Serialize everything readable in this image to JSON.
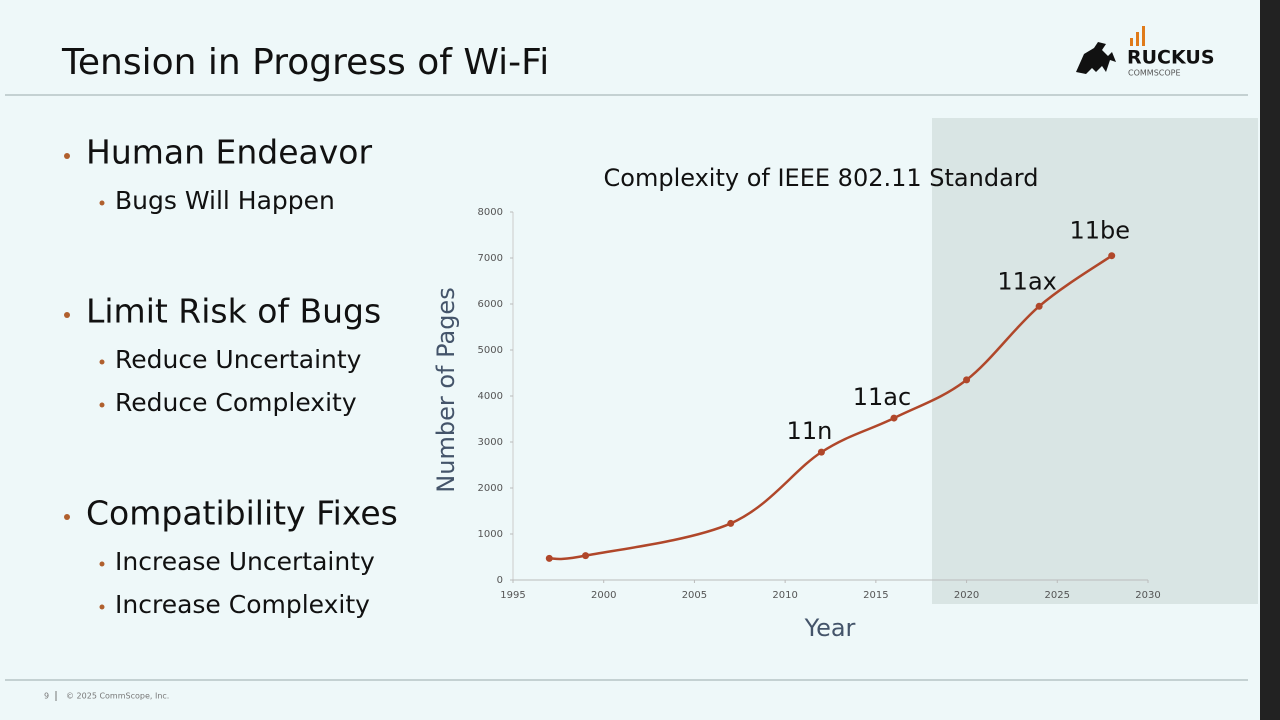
{
  "header": {
    "title": "Tension in Progress of Wi-Fi",
    "logo": "RUCKUS",
    "logo_sub": "COMMSCOPE"
  },
  "bullets": [
    {
      "text": "Human Endeavor",
      "sub": [
        "Bugs Will Happen"
      ]
    },
    {
      "text": "Limit Risk of Bugs",
      "sub": [
        "Reduce Uncertainty",
        "Reduce Complexity"
      ]
    },
    {
      "text": "Compatibility Fixes",
      "sub": [
        "Increase Uncertainty",
        "Increase Complexity"
      ]
    }
  ],
  "chart_data": {
    "type": "line",
    "title": "Complexity of IEEE 802.11 Standard",
    "x_label": "Year",
    "y_label": "Number of Pages",
    "x": [
      1997,
      1999,
      2007,
      2012,
      2016,
      2020,
      2024,
      2028
    ],
    "values": [
      470,
      530,
      1230,
      2780,
      3520,
      4350,
      5950,
      7050
    ],
    "color": "#b0472a",
    "xlim": [
      1995,
      2030
    ],
    "xticks": [
      1995,
      2000,
      2005,
      2010,
      2015,
      2020,
      2025,
      2030
    ],
    "ylim": [
      0,
      8000
    ],
    "yticks": [
      0,
      1000,
      2000,
      3000,
      4000,
      5000,
      6000,
      7000,
      8000
    ],
    "annotations": [
      {
        "text": "11n",
        "x": 2012
      },
      {
        "text": "11ac",
        "x": 2016
      },
      {
        "text": "11ax",
        "x": 2024
      },
      {
        "text": "11be",
        "x": 2028
      }
    ]
  },
  "footer": {
    "page": "9",
    "copyright": "© 2025 CommScope, Inc."
  }
}
